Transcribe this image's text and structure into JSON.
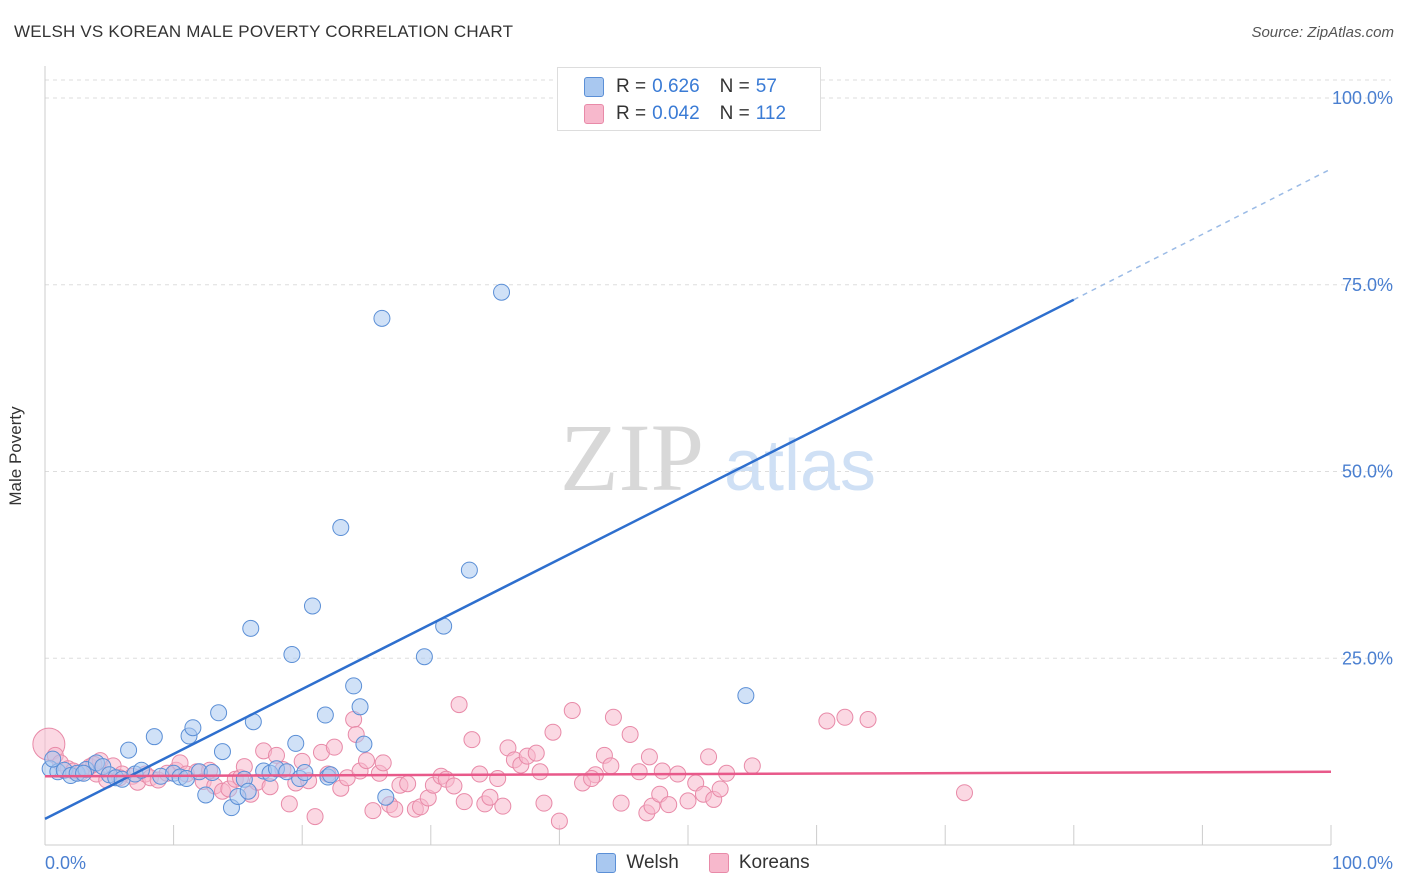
{
  "header": {
    "title": "WELSH VS KOREAN MALE POVERTY CORRELATION CHART",
    "source": "Source: ZipAtlas.com"
  },
  "watermark": {
    "zip": "ZIP",
    "atlas": "atlas"
  },
  "legend": {
    "welsh": {
      "r_label": "R =",
      "r_value": "0.626",
      "n_label": "N =",
      "n_value": "57"
    },
    "koreans": {
      "r_label": "R =",
      "r_value": "0.042",
      "n_label": "N =",
      "n_value": "112"
    }
  },
  "colors": {
    "welsh_fill": "#a9c8f0",
    "welsh_stroke": "#5b8fd6",
    "welsh_line": "#2e6fce",
    "koreans_fill": "#f7b8cc",
    "koreans_stroke": "#e88aa8",
    "koreans_line": "#e8598a",
    "grid": "#dddddd",
    "tick_label": "#4a7fd0"
  },
  "chart_data": {
    "type": "scatter",
    "title": "WELSH VS KOREAN MALE POVERTY CORRELATION CHART",
    "xlabel": "",
    "ylabel": "Male Poverty",
    "xlim": [
      0,
      100
    ],
    "ylim": [
      0,
      100
    ],
    "x_tick_labels": [
      "0.0%",
      "100.0%"
    ],
    "y_ticks": [
      25,
      50,
      75,
      100
    ],
    "y_tick_labels": [
      "25.0%",
      "50.0%",
      "75.0%",
      "100.0%"
    ],
    "grid": true,
    "legend_position": "bottom",
    "series": [
      {
        "name": "Welsh",
        "points": [
          [
            0.4,
            10.2
          ],
          [
            1.0,
            9.8
          ],
          [
            1.5,
            10.0
          ],
          [
            2.0,
            9.3
          ],
          [
            2.5,
            9.6
          ],
          [
            3.2,
            10.1
          ],
          [
            4.0,
            11.0
          ],
          [
            4.5,
            10.5
          ],
          [
            5.0,
            9.4
          ],
          [
            5.5,
            9.0
          ],
          [
            6.0,
            8.8
          ],
          [
            6.5,
            12.7
          ],
          [
            7.0,
            9.5
          ],
          [
            7.5,
            10.0
          ],
          [
            8.5,
            14.5
          ],
          [
            9.0,
            9.2
          ],
          [
            10.0,
            9.6
          ],
          [
            10.5,
            9.1
          ],
          [
            11.0,
            8.9
          ],
          [
            11.2,
            14.6
          ],
          [
            11.5,
            15.7
          ],
          [
            12.0,
            9.8
          ],
          [
            12.5,
            6.7
          ],
          [
            13.0,
            9.7
          ],
          [
            13.5,
            17.7
          ],
          [
            13.8,
            12.5
          ],
          [
            14.5,
            5.0
          ],
          [
            15.0,
            6.5
          ],
          [
            15.5,
            8.8
          ],
          [
            15.8,
            7.2
          ],
          [
            16.0,
            29.0
          ],
          [
            16.2,
            16.5
          ],
          [
            17.0,
            9.9
          ],
          [
            17.5,
            9.6
          ],
          [
            18.0,
            10.2
          ],
          [
            18.8,
            9.8
          ],
          [
            19.2,
            25.5
          ],
          [
            19.5,
            13.6
          ],
          [
            19.8,
            8.9
          ],
          [
            20.2,
            9.7
          ],
          [
            20.8,
            32.0
          ],
          [
            21.8,
            17.4
          ],
          [
            22.0,
            9.1
          ],
          [
            22.2,
            9.4
          ],
          [
            23.0,
            42.5
          ],
          [
            24.0,
            21.3
          ],
          [
            24.5,
            18.5
          ],
          [
            24.8,
            13.5
          ],
          [
            26.2,
            70.5
          ],
          [
            26.5,
            6.4
          ],
          [
            29.5,
            25.2
          ],
          [
            31.0,
            29.3
          ],
          [
            33.0,
            36.8
          ],
          [
            35.5,
            74.0
          ],
          [
            54.5,
            20.0
          ],
          [
            0.6,
            11.5
          ],
          [
            3.0,
            9.6
          ]
        ]
      },
      {
        "name": "Koreans",
        "points": [
          [
            0.3,
            13.5
          ],
          [
            0.8,
            12.0
          ],
          [
            1.2,
            11.0
          ],
          [
            1.8,
            10.2
          ],
          [
            2.2,
            9.9
          ],
          [
            2.8,
            9.7
          ],
          [
            3.5,
            10.5
          ],
          [
            4.0,
            9.5
          ],
          [
            4.3,
            11.3
          ],
          [
            4.8,
            8.7
          ],
          [
            5.3,
            10.6
          ],
          [
            6.0,
            9.5
          ],
          [
            6.8,
            9.2
          ],
          [
            7.2,
            8.4
          ],
          [
            7.8,
            9.5
          ],
          [
            8.2,
            9.0
          ],
          [
            8.8,
            8.7
          ],
          [
            9.5,
            9.6
          ],
          [
            10.2,
            10.0
          ],
          [
            10.5,
            11.0
          ],
          [
            11.0,
            9.5
          ],
          [
            11.8,
            9.8
          ],
          [
            12.3,
            8.5
          ],
          [
            12.8,
            10.0
          ],
          [
            13.2,
            7.9
          ],
          [
            13.8,
            7.2
          ],
          [
            14.3,
            7.5
          ],
          [
            14.8,
            8.8
          ],
          [
            15.2,
            9.0
          ],
          [
            15.5,
            10.5
          ],
          [
            16.0,
            6.8
          ],
          [
            16.5,
            8.4
          ],
          [
            17.0,
            12.6
          ],
          [
            17.5,
            7.8
          ],
          [
            18.0,
            12.0
          ],
          [
            18.5,
            10.1
          ],
          [
            19.0,
            5.5
          ],
          [
            19.5,
            8.3
          ],
          [
            20.0,
            11.2
          ],
          [
            20.5,
            8.6
          ],
          [
            21.0,
            3.8
          ],
          [
            21.5,
            12.4
          ],
          [
            22.0,
            9.5
          ],
          [
            22.5,
            13.1
          ],
          [
            23.0,
            7.6
          ],
          [
            23.5,
            9.0
          ],
          [
            24.0,
            16.8
          ],
          [
            24.2,
            14.8
          ],
          [
            24.5,
            9.9
          ],
          [
            25.0,
            11.3
          ],
          [
            25.5,
            4.6
          ],
          [
            26.0,
            9.6
          ],
          [
            26.3,
            11.0
          ],
          [
            26.8,
            5.4
          ],
          [
            27.2,
            4.8
          ],
          [
            27.6,
            8.0
          ],
          [
            28.2,
            8.2
          ],
          [
            28.8,
            4.8
          ],
          [
            29.2,
            5.1
          ],
          [
            29.8,
            6.3
          ],
          [
            30.2,
            8.0
          ],
          [
            30.8,
            9.2
          ],
          [
            31.2,
            8.8
          ],
          [
            31.8,
            7.9
          ],
          [
            32.2,
            18.8
          ],
          [
            32.6,
            5.8
          ],
          [
            33.2,
            14.1
          ],
          [
            33.8,
            9.5
          ],
          [
            34.2,
            5.5
          ],
          [
            34.6,
            6.4
          ],
          [
            35.2,
            8.9
          ],
          [
            35.6,
            5.2
          ],
          [
            36.0,
            13.0
          ],
          [
            36.5,
            11.4
          ],
          [
            37.0,
            10.7
          ],
          [
            37.5,
            11.9
          ],
          [
            38.2,
            12.3
          ],
          [
            38.8,
            5.6
          ],
          [
            39.5,
            15.1
          ],
          [
            40.0,
            3.2
          ],
          [
            41.0,
            18.0
          ],
          [
            41.8,
            8.3
          ],
          [
            42.8,
            9.4
          ],
          [
            43.5,
            12.0
          ],
          [
            44.2,
            17.1
          ],
          [
            44.8,
            5.6
          ],
          [
            45.5,
            14.8
          ],
          [
            46.2,
            9.8
          ],
          [
            46.8,
            4.3
          ],
          [
            47.2,
            5.2
          ],
          [
            47.8,
            6.8
          ],
          [
            48.5,
            5.4
          ],
          [
            49.2,
            9.5
          ],
          [
            50.0,
            5.9
          ],
          [
            50.6,
            8.3
          ],
          [
            51.2,
            6.8
          ],
          [
            52.0,
            6.1
          ],
          [
            52.5,
            7.5
          ],
          [
            53.0,
            9.6
          ],
          [
            55.0,
            10.6
          ],
          [
            60.8,
            16.6
          ],
          [
            62.2,
            17.1
          ],
          [
            64.0,
            16.8
          ],
          [
            71.5,
            7.0
          ],
          [
            38.5,
            9.8
          ],
          [
            42.5,
            8.9
          ],
          [
            44.0,
            10.6
          ],
          [
            47.0,
            11.8
          ],
          [
            48.0,
            9.9
          ],
          [
            51.6,
            11.8
          ],
          [
            3.8,
            10.8
          ],
          [
            5.8,
            9.0
          ]
        ]
      }
    ],
    "trend_lines": [
      {
        "series": "Welsh",
        "from": [
          0,
          3.5
        ],
        "to": [
          80,
          73.0
        ],
        "dashed_to": [
          100,
          90.5
        ]
      },
      {
        "series": "Koreans",
        "from": [
          0,
          9.2
        ],
        "to": [
          100,
          9.8
        ]
      }
    ]
  }
}
